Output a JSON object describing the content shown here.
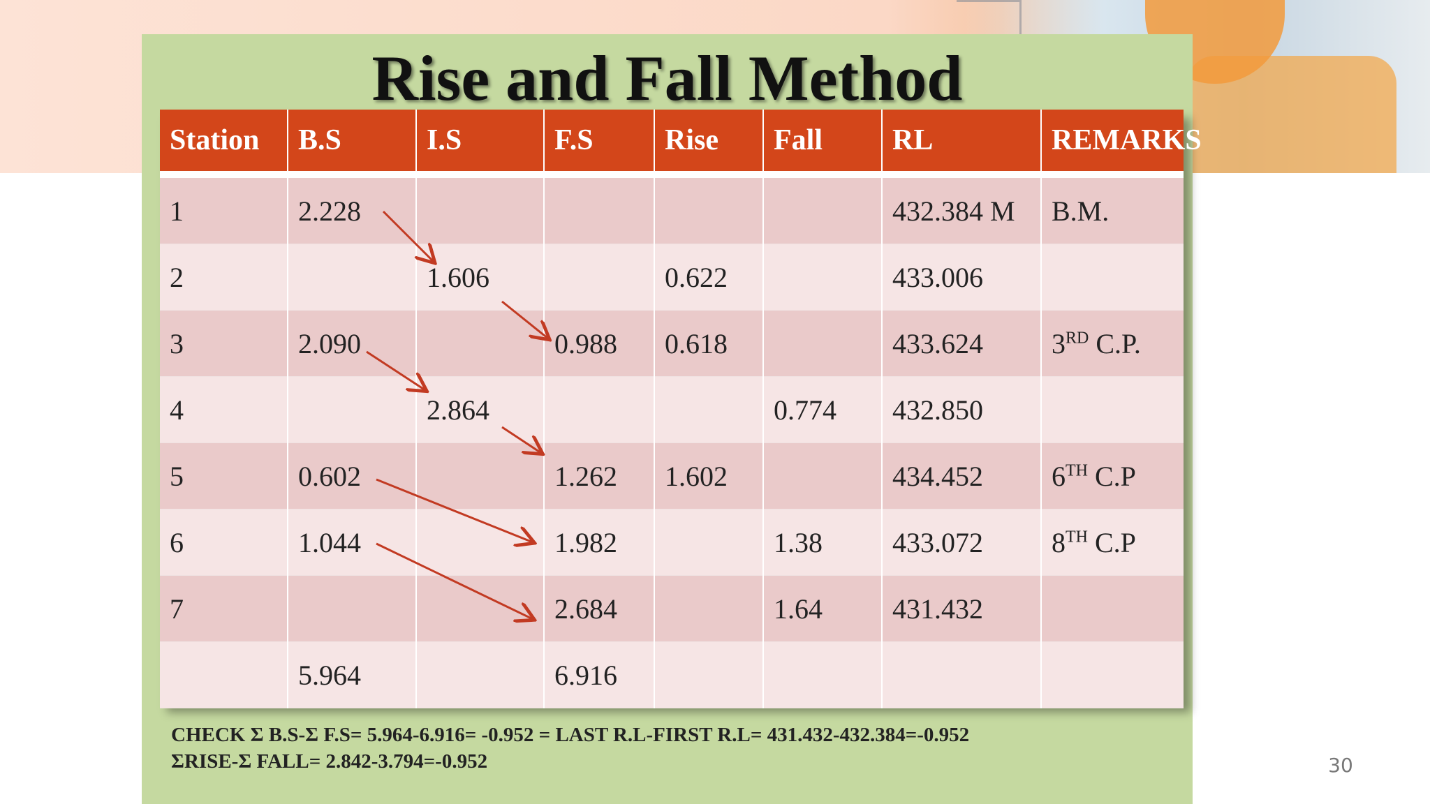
{
  "title": "Rise and Fall Method",
  "columns": [
    "Station",
    "B.S",
    "I.S",
    "F.S",
    "Rise",
    "Fall",
    "RL",
    "REMARKS"
  ],
  "rows": [
    {
      "station": "1",
      "bs": "2.228",
      "is": "",
      "fs": "",
      "rise": "",
      "fall": "",
      "rl": "432.384 M",
      "remarks": "B.M.",
      "remarks_sup": "",
      "remarks_suffix": ""
    },
    {
      "station": "2",
      "bs": "",
      "is": "1.606",
      "fs": "",
      "rise": "0.622",
      "fall": "",
      "rl": "433.006",
      "remarks": "",
      "remarks_sup": "",
      "remarks_suffix": ""
    },
    {
      "station": "3",
      "bs": "2.090",
      "is": "",
      "fs": "0.988",
      "rise": "0.618",
      "fall": "",
      "rl": "433.624",
      "remarks": "3",
      "remarks_sup": "RD",
      "remarks_suffix": " C.P."
    },
    {
      "station": "4",
      "bs": "",
      "is": "2.864",
      "fs": "",
      "rise": "",
      "fall": "0.774",
      "rl": "432.850",
      "remarks": "",
      "remarks_sup": "",
      "remarks_suffix": ""
    },
    {
      "station": "5",
      "bs": "0.602",
      "is": "",
      "fs": "1.262",
      "rise": "1.602",
      "fall": "",
      "rl": "434.452",
      "remarks": "6",
      "remarks_sup": "TH",
      "remarks_suffix": " C.P"
    },
    {
      "station": "6",
      "bs": "1.044",
      "is": "",
      "fs": "1.982",
      "rise": "",
      "fall": "1.38",
      "rl": "433.072",
      "remarks": "8",
      "remarks_sup": "TH",
      "remarks_suffix": " C.P"
    },
    {
      "station": "7",
      "bs": "",
      "is": "",
      "fs": "2.684",
      "rise": "",
      "fall": "1.64",
      "rl": "431.432",
      "remarks": "",
      "remarks_sup": "",
      "remarks_suffix": ""
    },
    {
      "station": "",
      "bs": "5.964",
      "is": "",
      "fs": "6.916",
      "rise": "",
      "fall": "",
      "rl": "",
      "remarks": "",
      "remarks_sup": "",
      "remarks_suffix": ""
    }
  ],
  "check": {
    "line1": "CHECK  Σ B.S-Σ F.S= 5.964-6.916= -0.952 =  LAST R.L-FIRST R.L= 431.432-432.384=-0.952",
    "line2": "ΣRISE-Σ FALL= 2.842-3.794=-0.952"
  },
  "page_number": "30",
  "colors": {
    "header_bg": "#d3461a",
    "slide_bg": "#c5d9a0",
    "row_dark": "#eacaca",
    "row_light": "#f6e5e5",
    "arrow": "#c23a22"
  }
}
